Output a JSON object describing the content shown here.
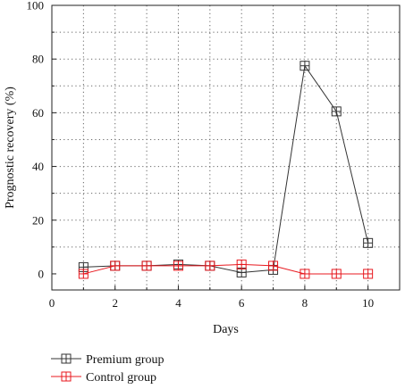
{
  "chart_data": {
    "type": "line",
    "xlabel": "Days",
    "ylabel": "Prognostic recovery (%)",
    "xlim": [
      0,
      11
    ],
    "ylim": [
      -6,
      100
    ],
    "x_ticks": [
      0,
      2,
      4,
      6,
      8,
      10
    ],
    "y_ticks": [
      0,
      20,
      40,
      60,
      80,
      100
    ],
    "x_tick_labels": [
      "0",
      "2",
      "4",
      "6",
      "8",
      "10"
    ],
    "y_tick_labels": [
      "0",
      "20",
      "40",
      "60",
      "80",
      "100"
    ],
    "grid": true,
    "grid_style": "dotted",
    "legend_position": "bottom-left, below plot",
    "series": [
      {
        "name": "Premium group",
        "color": "#333333",
        "marker": "square-plus",
        "x": [
          1,
          2,
          3,
          4,
          5,
          6,
          7,
          8,
          9,
          10
        ],
        "y": [
          2.5,
          3,
          3,
          3.5,
          3,
          0.5,
          1.5,
          77.5,
          60.5,
          11.5
        ]
      },
      {
        "name": "Control group",
        "color": "#e8191f",
        "marker": "square-plus",
        "x": [
          1,
          2,
          3,
          4,
          5,
          6,
          7,
          8,
          9,
          10
        ],
        "y": [
          0,
          3,
          3,
          3,
          3,
          3.5,
          3,
          0,
          0,
          0
        ]
      }
    ]
  }
}
